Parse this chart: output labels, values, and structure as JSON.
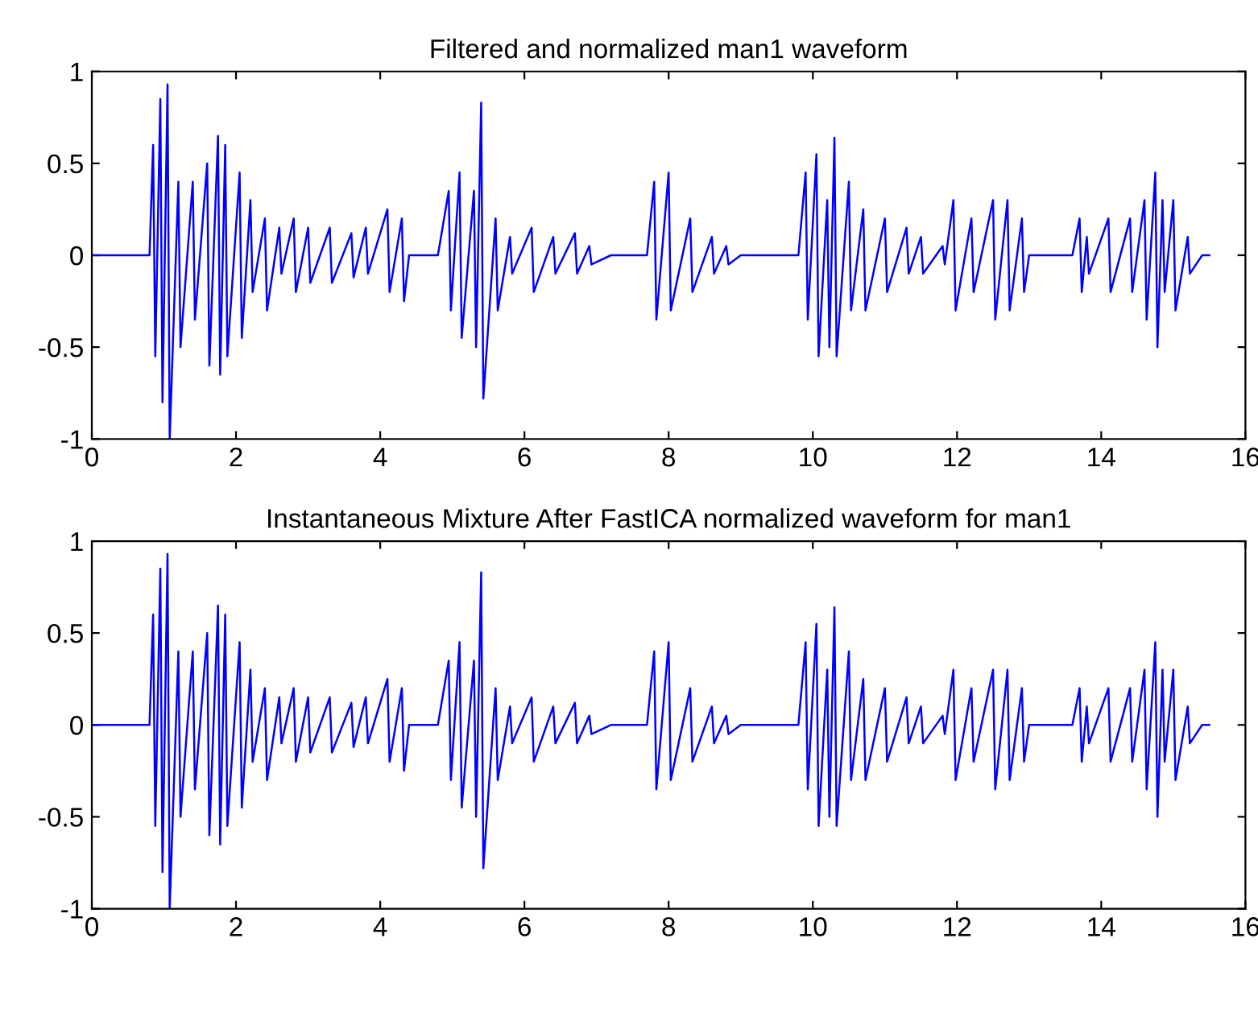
{
  "chart_data": [
    {
      "type": "line",
      "title": "Filtered and normalized man1 waveform",
      "xlim": [
        0,
        16
      ],
      "xticks": [
        0,
        2,
        4,
        6,
        8,
        10,
        12,
        14,
        16
      ],
      "ylim": [
        -1,
        1
      ],
      "yticks": [
        -1,
        -0.5,
        0,
        0.5,
        1
      ],
      "grid": false,
      "marker": "none",
      "line_style": "solid",
      "series": [
        {
          "color": "#0000ff",
          "x": [
            0,
            0.8,
            0.85,
            0.88,
            0.95,
            0.98,
            1.05,
            1.08,
            1.2,
            1.23,
            1.4,
            1.43,
            1.6,
            1.63,
            1.75,
            1.78,
            1.85,
            1.88,
            2.05,
            2.08,
            2.2,
            2.23,
            2.4,
            2.43,
            2.6,
            2.63,
            2.8,
            2.83,
            3.0,
            3.03,
            3.3,
            3.33,
            3.6,
            3.63,
            3.8,
            3.83,
            4.1,
            4.13,
            4.3,
            4.33,
            4.4,
            4.8,
            4.95,
            4.98,
            5.1,
            5.13,
            5.3,
            5.33,
            5.4,
            5.43,
            5.6,
            5.63,
            5.8,
            5.83,
            6.1,
            6.13,
            6.4,
            6.43,
            6.7,
            6.73,
            6.9,
            6.93,
            7.2,
            7.7,
            7.8,
            7.83,
            8.0,
            8.03,
            8.3,
            8.33,
            8.6,
            8.63,
            8.8,
            8.83,
            9.0,
            9.8,
            9.9,
            9.93,
            10.05,
            10.08,
            10.2,
            10.23,
            10.3,
            10.33,
            10.5,
            10.53,
            10.7,
            10.73,
            11.0,
            11.03,
            11.3,
            11.33,
            11.5,
            11.53,
            11.8,
            11.83,
            11.95,
            11.98,
            12.2,
            12.23,
            12.5,
            12.53,
            12.7,
            12.73,
            12.9,
            12.93,
            13.0,
            13.6,
            13.7,
            13.73,
            13.8,
            13.83,
            14.1,
            14.13,
            14.4,
            14.43,
            14.6,
            14.63,
            14.75,
            14.78,
            14.85,
            14.88,
            15.0,
            15.03,
            15.2,
            15.23,
            15.4,
            15.5
          ],
          "values": [
            0,
            0,
            0.6,
            -0.55,
            0.85,
            -0.8,
            0.93,
            -1.0,
            0.4,
            -0.5,
            0.4,
            -0.35,
            0.5,
            -0.6,
            0.65,
            -0.65,
            0.6,
            -0.55,
            0.45,
            -0.45,
            0.3,
            -0.2,
            0.2,
            -0.3,
            0.15,
            -0.1,
            0.2,
            -0.2,
            0.15,
            -0.15,
            0.15,
            -0.15,
            0.12,
            -0.12,
            0.15,
            -0.1,
            0.25,
            -0.2,
            0.2,
            -0.25,
            0,
            0,
            0.35,
            -0.3,
            0.45,
            -0.45,
            0.35,
            -0.5,
            0.83,
            -0.78,
            0.2,
            -0.3,
            0.1,
            -0.1,
            0.15,
            -0.2,
            0.1,
            -0.1,
            0.12,
            -0.1,
            0.05,
            -0.05,
            0,
            0,
            0.4,
            -0.35,
            0.45,
            -0.3,
            0.2,
            -0.2,
            0.1,
            -0.1,
            0.05,
            -0.05,
            0,
            0,
            0.45,
            -0.35,
            0.55,
            -0.55,
            0.3,
            -0.5,
            0.64,
            -0.55,
            0.4,
            -0.3,
            0.25,
            -0.3,
            0.2,
            -0.2,
            0.15,
            -0.1,
            0.1,
            -0.1,
            0.05,
            -0.05,
            0.3,
            -0.3,
            0.2,
            -0.2,
            0.3,
            -0.35,
            0.3,
            -0.3,
            0.2,
            -0.2,
            0,
            0,
            0.2,
            -0.2,
            0.1,
            -0.1,
            0.2,
            -0.2,
            0.2,
            -0.2,
            0.3,
            -0.35,
            0.45,
            -0.5,
            0.3,
            -0.2,
            0.3,
            -0.3,
            0.1,
            -0.1,
            0,
            0
          ]
        }
      ]
    },
    {
      "type": "line",
      "title": "Instantaneous Mixture After FastICA normalized waveform for man1",
      "xlim": [
        0,
        16
      ],
      "xticks": [
        0,
        2,
        4,
        6,
        8,
        10,
        12,
        14,
        16
      ],
      "ylim": [
        -1,
        1
      ],
      "yticks": [
        -1,
        -0.5,
        0,
        0.5,
        1
      ],
      "grid": false,
      "marker": "none",
      "line_style": "solid",
      "series": [
        {
          "color": "#0000ff",
          "x": [
            0,
            0.8,
            0.85,
            0.88,
            0.95,
            0.98,
            1.05,
            1.08,
            1.2,
            1.23,
            1.4,
            1.43,
            1.6,
            1.63,
            1.75,
            1.78,
            1.85,
            1.88,
            2.05,
            2.08,
            2.2,
            2.23,
            2.4,
            2.43,
            2.6,
            2.63,
            2.8,
            2.83,
            3.0,
            3.03,
            3.3,
            3.33,
            3.6,
            3.63,
            3.8,
            3.83,
            4.1,
            4.13,
            4.3,
            4.33,
            4.4,
            4.8,
            4.95,
            4.98,
            5.1,
            5.13,
            5.3,
            5.33,
            5.4,
            5.43,
            5.6,
            5.63,
            5.8,
            5.83,
            6.1,
            6.13,
            6.4,
            6.43,
            6.7,
            6.73,
            6.9,
            6.93,
            7.2,
            7.7,
            7.8,
            7.83,
            8.0,
            8.03,
            8.3,
            8.33,
            8.6,
            8.63,
            8.8,
            8.83,
            9.0,
            9.8,
            9.9,
            9.93,
            10.05,
            10.08,
            10.2,
            10.23,
            10.3,
            10.33,
            10.5,
            10.53,
            10.7,
            10.73,
            11.0,
            11.03,
            11.3,
            11.33,
            11.5,
            11.53,
            11.8,
            11.83,
            11.95,
            11.98,
            12.2,
            12.23,
            12.5,
            12.53,
            12.7,
            12.73,
            12.9,
            12.93,
            13.0,
            13.6,
            13.7,
            13.73,
            13.8,
            13.83,
            14.1,
            14.13,
            14.4,
            14.43,
            14.6,
            14.63,
            14.75,
            14.78,
            14.85,
            14.88,
            15.0,
            15.03,
            15.2,
            15.23,
            15.4,
            15.5
          ],
          "values": [
            0,
            0,
            0.6,
            -0.55,
            0.85,
            -0.8,
            0.93,
            -1.0,
            0.4,
            -0.5,
            0.4,
            -0.35,
            0.5,
            -0.6,
            0.65,
            -0.65,
            0.6,
            -0.55,
            0.45,
            -0.45,
            0.3,
            -0.2,
            0.2,
            -0.3,
            0.15,
            -0.1,
            0.2,
            -0.2,
            0.15,
            -0.15,
            0.15,
            -0.15,
            0.12,
            -0.12,
            0.15,
            -0.1,
            0.25,
            -0.2,
            0.2,
            -0.25,
            0,
            0,
            0.35,
            -0.3,
            0.45,
            -0.45,
            0.35,
            -0.5,
            0.83,
            -0.78,
            0.2,
            -0.3,
            0.1,
            -0.1,
            0.15,
            -0.2,
            0.1,
            -0.1,
            0.12,
            -0.1,
            0.05,
            -0.05,
            0,
            0,
            0.4,
            -0.35,
            0.45,
            -0.3,
            0.2,
            -0.2,
            0.1,
            -0.1,
            0.05,
            -0.05,
            0,
            0,
            0.45,
            -0.35,
            0.55,
            -0.55,
            0.3,
            -0.5,
            0.64,
            -0.55,
            0.4,
            -0.3,
            0.25,
            -0.3,
            0.2,
            -0.2,
            0.15,
            -0.1,
            0.1,
            -0.1,
            0.05,
            -0.05,
            0.3,
            -0.3,
            0.2,
            -0.2,
            0.3,
            -0.35,
            0.3,
            -0.3,
            0.2,
            -0.2,
            0,
            0,
            0.2,
            -0.2,
            0.1,
            -0.1,
            0.2,
            -0.2,
            0.2,
            -0.2,
            0.3,
            -0.35,
            0.45,
            -0.5,
            0.3,
            -0.2,
            0.3,
            -0.3,
            0.1,
            -0.1,
            0,
            0
          ]
        }
      ]
    }
  ]
}
